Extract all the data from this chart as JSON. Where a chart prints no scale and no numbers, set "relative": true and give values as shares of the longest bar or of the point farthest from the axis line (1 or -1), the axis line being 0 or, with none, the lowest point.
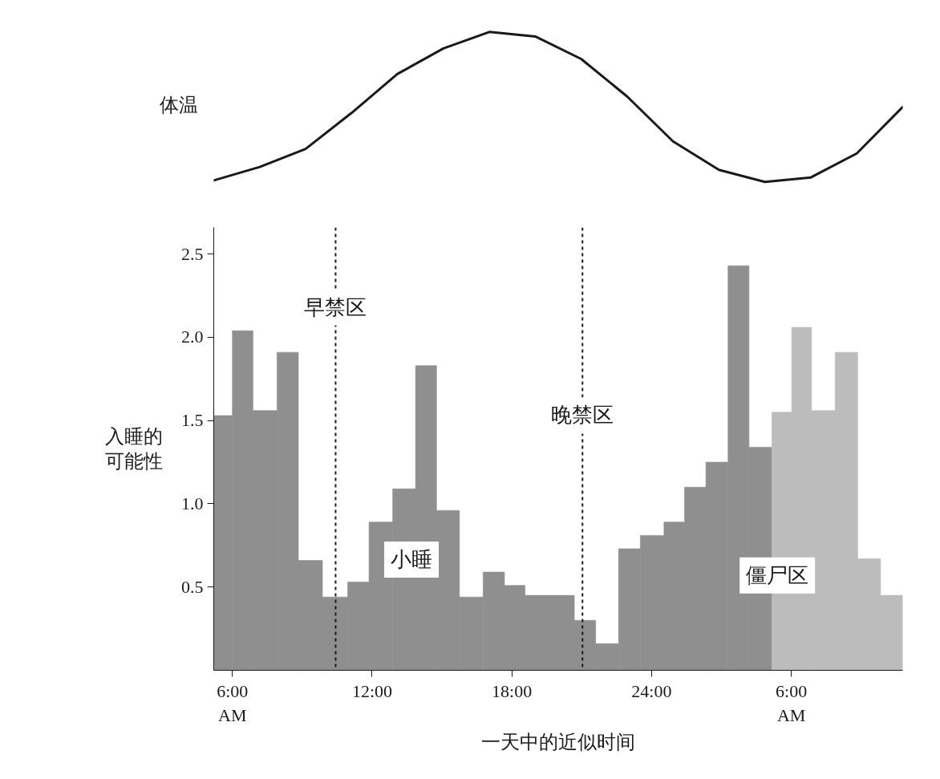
{
  "chart_data": [
    {
      "type": "line",
      "ylabel": "体温",
      "relative": true,
      "categories": [
        null,
        null,
        null,
        null,
        null,
        null,
        null,
        null,
        null,
        null,
        null,
        null,
        null,
        null,
        null,
        null
      ],
      "series": [
        {
          "color": "#1a1a1a",
          "values": [
            0.01,
            0.1,
            0.22,
            0.46,
            0.72,
            0.89,
            1.0,
            0.97,
            0.82,
            0.57,
            0.27,
            0.08,
            0.0,
            0.03,
            0.19,
            0.5
          ]
        }
      ]
    },
    {
      "type": "histogram",
      "xlabel": "一天中的近似时间",
      "ylabel": "入睡的可能性",
      "bins": [
        "2000-01-01T05:12",
        "2000-01-01T06:00",
        "2000-01-01T06:53",
        "2000-01-01T07:55",
        "2000-01-01T08:50",
        "2000-01-01T09:52",
        "2000-01-01T10:57",
        "2000-01-01T11:52",
        "2000-01-01T12:53",
        "2000-01-01T13:52",
        "2000-01-01T14:46",
        "2000-01-01T15:45",
        "2000-01-01T16:46",
        "2000-01-01T17:41",
        "2000-01-01T18:34",
        "2000-01-01T20:41",
        "2000-01-01T21:36",
        "2000-01-01T22:35",
        "2000-01-01T23:31",
        "2000-01-02T00:32",
        "2000-01-02T01:25",
        "2000-01-02T02:20",
        "2000-01-02T03:17",
        "2000-01-02T04:11",
        "2000-01-02T05:10",
        "2000-01-02T06:01",
        "2000-01-02T06:52",
        "2000-01-02T07:53",
        "2000-01-02T08:51",
        "2000-01-02T09:50",
        "2000-01-02T10:47"
      ],
      "values": [
        1.53,
        2.04,
        1.56,
        1.91,
        0.66,
        0.44,
        0.53,
        0.89,
        1.09,
        1.83,
        0.96,
        0.44,
        0.59,
        0.51,
        0.45,
        0.3,
        0.16,
        0.73,
        0.81,
        0.89,
        1.1,
        1.25,
        2.43,
        1.34,
        1.55,
        2.06,
        1.56,
        1.91,
        0.67,
        0.45
      ],
      "colors": [
        "#8f8f8f",
        "#8f8f8f",
        "#8f8f8f",
        "#8f8f8f",
        "#8f8f8f",
        "#8f8f8f",
        "#8f8f8f",
        "#8f8f8f",
        "#8f8f8f",
        "#8f8f8f",
        "#8f8f8f",
        "#8f8f8f",
        "#8f8f8f",
        "#8f8f8f",
        "#8f8f8f",
        "#8f8f8f",
        "#8f8f8f",
        "#8f8f8f",
        "#8f8f8f",
        "#8f8f8f",
        "#8f8f8f",
        "#8f8f8f",
        "#8f8f8f",
        "#8f8f8f",
        "#bcbcbc",
        "#bcbcbc",
        "#bcbcbc",
        "#bcbcbc",
        "#bcbcbc",
        "#bcbcbc"
      ],
      "xlim": [
        "2000-01-01T05:12",
        "2000-01-02T10:47"
      ],
      "ylim": [
        0,
        2.66
      ],
      "xticks": [
        {
          "value": "2000-01-01T06:00",
          "label": "6:00\nAM"
        },
        {
          "value": "2000-01-01T12:00",
          "label": "12:00"
        },
        {
          "value": "2000-01-01T18:00",
          "label": "18:00"
        },
        {
          "value": "2000-01-02T00:00",
          "label": "24:00"
        },
        {
          "value": "2000-01-02T06:00",
          "label": "6:00\nAM"
        }
      ],
      "yticks": [
        0.5,
        {
          "value": 1,
          "label": "1.0"
        },
        1.5,
        {
          "value": 2,
          "label": "2.0"
        },
        2.5
      ],
      "ref_lines": [
        {
          "axis": "x",
          "value": "2000-01-01T10:26",
          "line_style": "dashed",
          "color": "#1a1a1a"
        },
        {
          "axis": "x",
          "value": "2000-01-01T21:02",
          "line_style": "dashed",
          "color": "#1a1a1a"
        }
      ],
      "annotations": [
        {
          "text": "早禁区",
          "x": "2000-01-01T10:26",
          "y": 2.18
        },
        {
          "text": "晚禁区",
          "x": "2000-01-01T21:02",
          "y": 1.53
        },
        "小睡",
        "僵尸区"
      ]
    }
  ]
}
